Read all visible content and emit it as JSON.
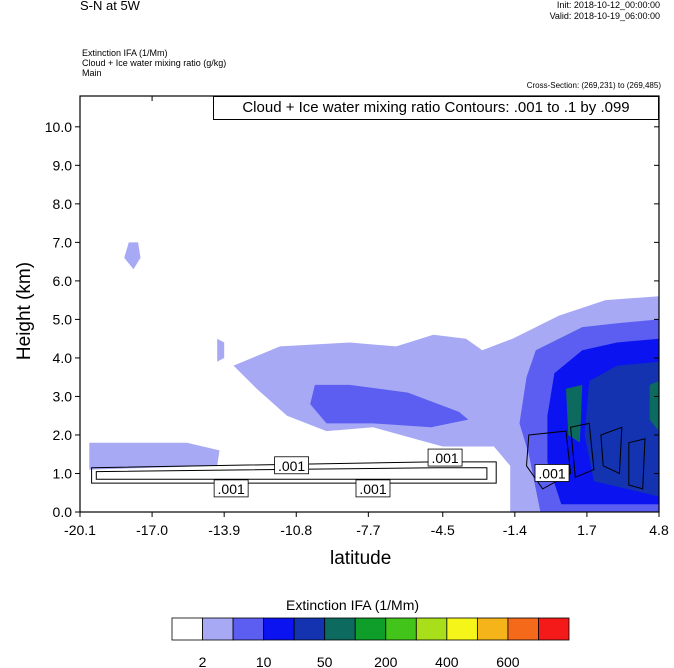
{
  "header": {
    "title": "S-N at 5W",
    "init": "Init: 2018-10-12_00:00:00",
    "valid": "Valid: 2018-10-19_06:00:00",
    "field_line1": "Extinction IFA   (1/Mm)",
    "field_line2": "Cloud + Ice water mixing ratio   (g/kg)",
    "field_line3": "Main",
    "cross_section": "Cross-Section: (269,231) to (269,485)",
    "contour_info": "Cloud + Ice water mixing ratio Contours: .001 to .1 by .099"
  },
  "colors": {
    "levels": [
      "#ffffff",
      "#a7a9f5",
      "#5b5ef0",
      "#0a13f0",
      "#1333b0",
      "#0c6b5e",
      "#0f9e2a",
      "#42c41a",
      "#a8de1a",
      "#f5f51a",
      "#f5b41a",
      "#f56a1a",
      "#f51a1a"
    ],
    "contour": "#000000"
  },
  "chart_data": {
    "type": "heatmap",
    "xlabel": "latitude",
    "ylabel": "Height (km)",
    "xlim": [
      -20.1,
      4.8
    ],
    "ylim": [
      0.0,
      10.8
    ],
    "xticks": [
      "-20.1",
      "-17.0",
      "-13.9",
      "-10.8",
      "-7.7",
      "-4.5",
      "-1.4",
      "1.7",
      "4.8"
    ],
    "yticks": [
      "0.0",
      "1.0",
      "2.0",
      "3.0",
      "4.0",
      "5.0",
      "6.0",
      "7.0",
      "8.0",
      "9.0",
      "10.0"
    ],
    "colorbar": {
      "title": "Extinction IFA  (1/Mm)",
      "labels": [
        "2",
        "10",
        "50",
        "200",
        "400",
        "600"
      ]
    },
    "contour_labels": [
      {
        "text": ".001",
        "x": -11.0,
        "y": 1.2
      },
      {
        "text": ".001",
        "x": -13.6,
        "y": 0.6
      },
      {
        "text": ".001",
        "x": -7.5,
        "y": 0.6
      },
      {
        "text": ".001",
        "x": -4.4,
        "y": 1.4
      },
      {
        "text": ".001",
        "x": 0.2,
        "y": 1.0
      }
    ]
  }
}
